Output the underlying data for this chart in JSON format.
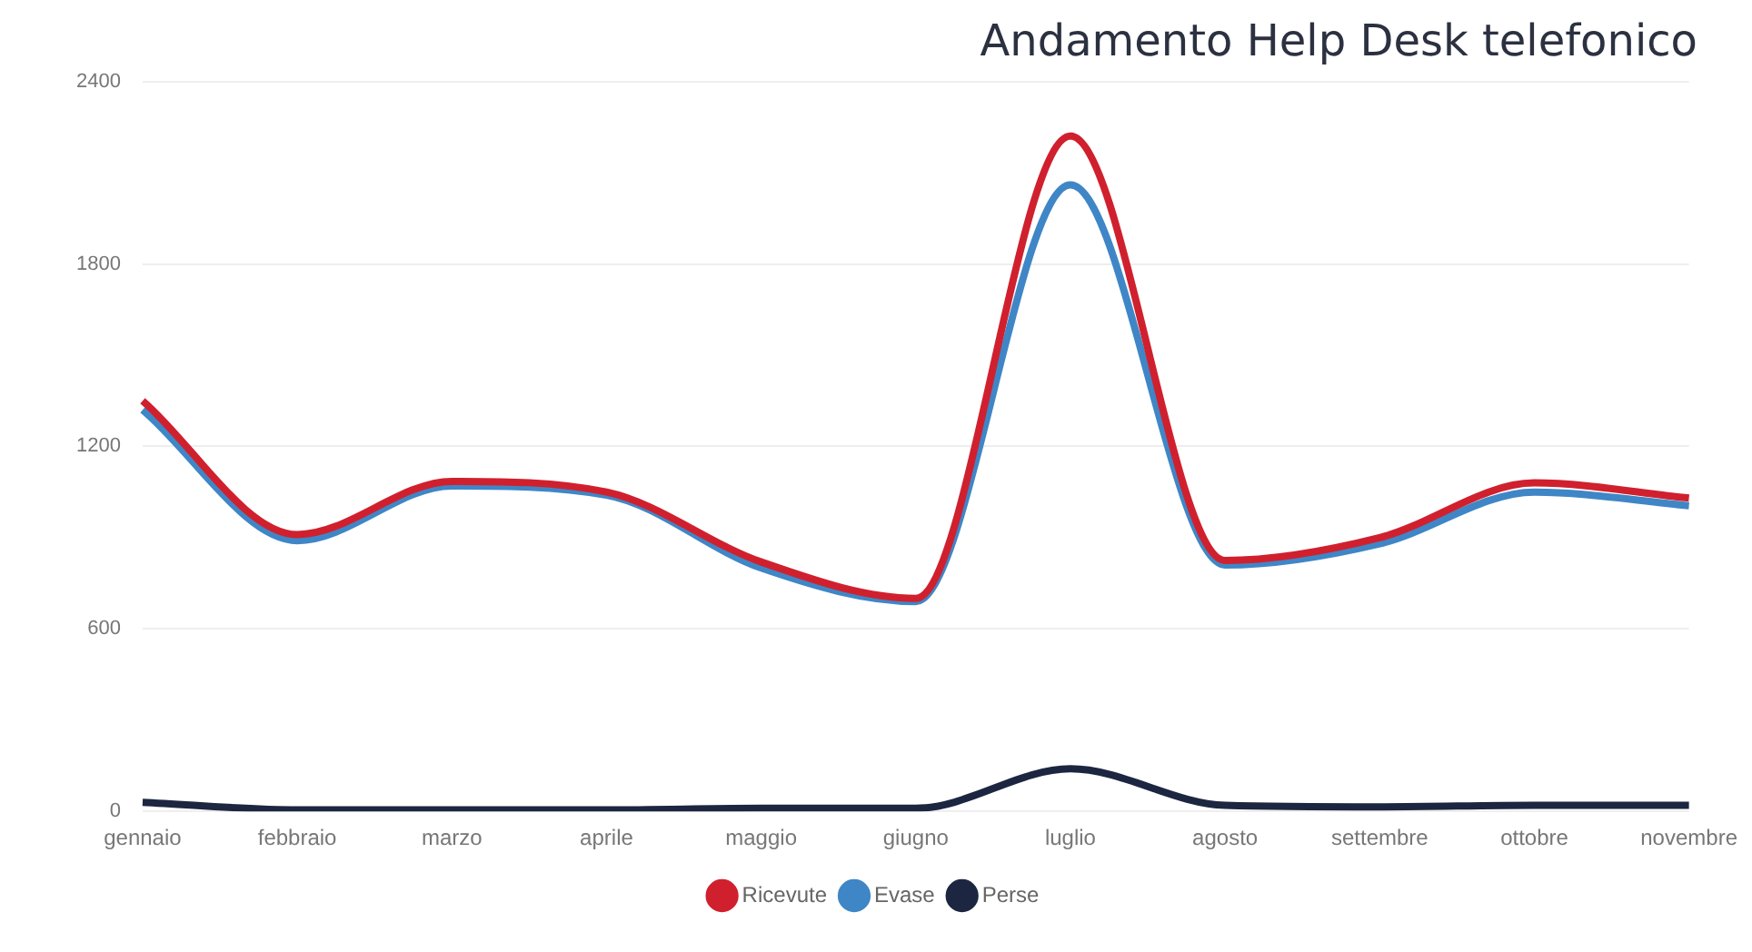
{
  "chart_data": {
    "type": "line",
    "title": "Andamento Help Desk telefonico",
    "categories": [
      "gennaio",
      "febbraio",
      "marzo",
      "aprile",
      "maggio",
      "giugno",
      "luglio",
      "agosto",
      "settembre",
      "ottobre",
      "novembre"
    ],
    "series": [
      {
        "name": "Ricevute",
        "color": "#d0202e",
        "values": [
          1350,
          910,
          1085,
          1050,
          820,
          700,
          2220,
          825,
          900,
          1080,
          1030
        ]
      },
      {
        "name": "Evase",
        "color": "#3f86c6",
        "values": [
          1320,
          890,
          1070,
          1040,
          800,
          690,
          2060,
          810,
          880,
          1050,
          1005
        ]
      },
      {
        "name": "Perse",
        "color": "#1c2640",
        "values": [
          30,
          5,
          5,
          5,
          10,
          10,
          140,
          20,
          15,
          20,
          20
        ]
      }
    ],
    "ylim": [
      0,
      2400
    ],
    "yticks": [
      0,
      600,
      1200,
      1800,
      2400
    ],
    "grid": "y",
    "legend": "bottom",
    "marker": "none"
  }
}
